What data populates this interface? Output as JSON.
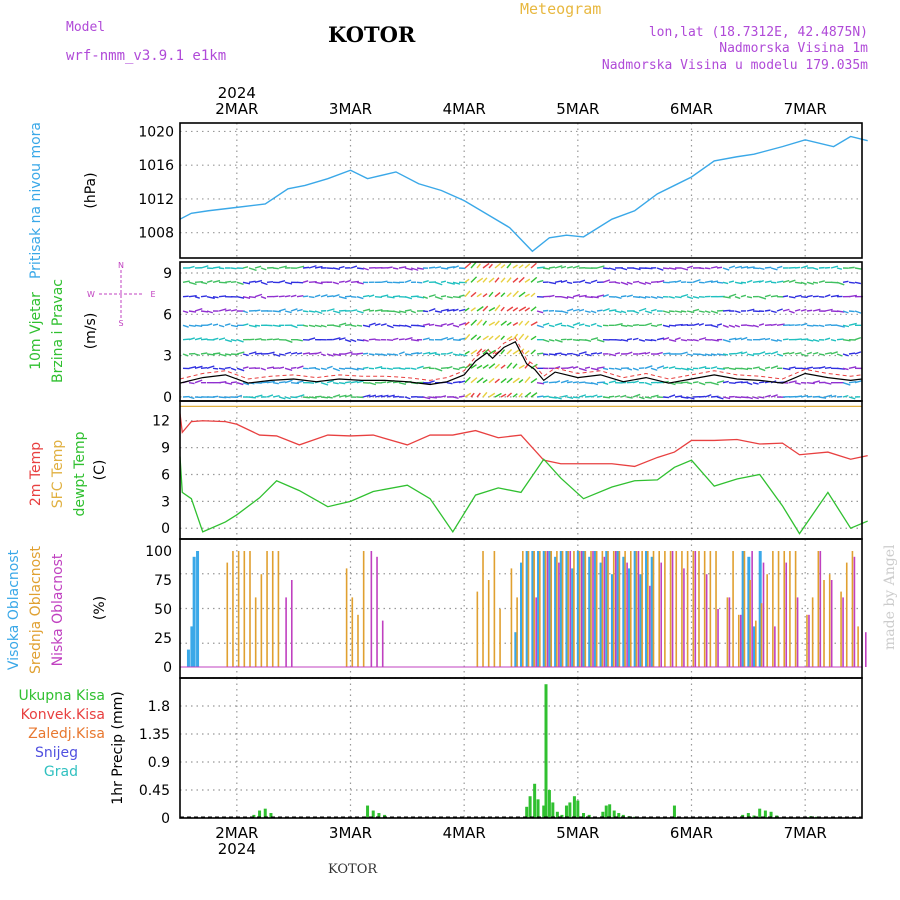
{
  "header": {
    "title": "KOTOR",
    "model_label": "Model",
    "model_name": "wrf-nmm_v3.9.1  e1km",
    "meteogram": "Meteogram",
    "lonlat": "lon,lat (18.7312E, 42.4875N)",
    "altitude": "Nadmorska Visina 1m",
    "model_altitude": "Nadmorska Visina u modelu 179.035m"
  },
  "footer": {
    "location": "KOTOR"
  },
  "credit": "made by Angel",
  "colors": {
    "pressure": "#3aa8e8",
    "wind_green": "#30c030",
    "temp": "#e84040",
    "sfc_temp": "#e0b040",
    "dewpoint": "#30c030",
    "high_cloud": "#3aa8e8",
    "mid_cloud": "#e0a030",
    "low_cloud": "#c040c0",
    "total_precip": "#30c030",
    "conv_precip": "#e84040",
    "frozen_precip": "#e87830",
    "snow": "#5050e0",
    "hail": "#30c0c0",
    "wind_label": "#c040c0"
  },
  "chart_data": [
    {
      "type": "line",
      "name": "pressure",
      "ylabel": "Pritisak na nivou mora",
      "unit": "(hPa)",
      "ylim": [
        1005,
        1021
      ],
      "yticks": [
        1008,
        1012,
        1016,
        1020
      ],
      "x_days": [
        1.5,
        1.6,
        1.75,
        2.0,
        2.25,
        2.45,
        2.6,
        2.8,
        3.0,
        3.15,
        3.4,
        3.6,
        3.8,
        4.0,
        4.2,
        4.4,
        4.6,
        4.75,
        4.9,
        5.05,
        5.3,
        5.5,
        5.7,
        5.85,
        6.0,
        6.2,
        6.4,
        6.55,
        6.8,
        7.0,
        7.25,
        7.4,
        7.55
      ],
      "values": [
        1009.6,
        1010.3,
        1010.6,
        1011.0,
        1011.4,
        1013.2,
        1013.6,
        1014.4,
        1015.4,
        1014.4,
        1015.2,
        1013.8,
        1013.0,
        1011.8,
        1010.2,
        1008.6,
        1005.8,
        1007.4,
        1007.7,
        1007.5,
        1009.6,
        1010.6,
        1012.6,
        1013.6,
        1014.6,
        1016.5,
        1017.0,
        1017.3,
        1018.2,
        1019.0,
        1018.2,
        1019.4,
        1018.9
      ]
    },
    {
      "type": "line",
      "name": "wind",
      "ylabel_lines": [
        "10m Vjetar",
        "Brzina i Pravac"
      ],
      "unit": "(m/s)",
      "ylim": [
        -0.3,
        9.8
      ],
      "yticks": [
        0,
        3,
        6,
        9
      ],
      "compass": [
        "N",
        "W",
        "E",
        "S"
      ],
      "x_days": [
        1.5,
        1.7,
        1.9,
        2.1,
        2.3,
        2.5,
        2.7,
        2.9,
        3.1,
        3.3,
        3.5,
        3.7,
        3.85,
        4.0,
        4.1,
        4.2,
        4.25,
        4.35,
        4.45,
        4.55,
        4.62,
        4.7,
        4.8,
        5.0,
        5.2,
        5.4,
        5.6,
        5.8,
        6.0,
        6.2,
        6.4,
        6.6,
        6.8,
        7.0,
        7.2,
        7.4,
        7.5
      ],
      "values": [
        1.0,
        1.4,
        1.6,
        1.0,
        1.2,
        1.3,
        1.1,
        1.3,
        1.2,
        1.2,
        1.1,
        0.9,
        1.1,
        1.6,
        2.6,
        3.2,
        2.8,
        3.6,
        4.0,
        2.4,
        2.0,
        1.2,
        1.8,
        1.4,
        1.6,
        1.1,
        1.4,
        1.0,
        1.3,
        1.6,
        1.3,
        1.2,
        1.0,
        1.7,
        1.4,
        1.2,
        1.3
      ]
    },
    {
      "type": "line",
      "name": "temperature",
      "ylabel_parts": [
        "2m Temp",
        "SFC Temp",
        "dewpt Temp"
      ],
      "unit": "(C)",
      "ylim": [
        -1.2,
        14.2
      ],
      "yticks": [
        0,
        3,
        6,
        9,
        12
      ],
      "x_days": [
        1.5,
        1.52,
        1.6,
        1.7,
        1.9,
        2.0,
        2.2,
        2.35,
        2.55,
        2.8,
        3.0,
        3.2,
        3.5,
        3.7,
        3.9,
        4.1,
        4.3,
        4.5,
        4.7,
        4.85,
        5.05,
        5.3,
        5.5,
        5.7,
        5.85,
        6.0,
        6.2,
        6.4,
        6.6,
        6.8,
        6.95,
        7.2,
        7.4,
        7.55
      ],
      "series": [
        {
          "name": "2m Temp",
          "values": [
            12.8,
            10.7,
            11.9,
            12.0,
            11.9,
            11.6,
            10.4,
            10.3,
            9.3,
            10.4,
            10.3,
            10.4,
            9.3,
            10.4,
            10.4,
            10.9,
            10.1,
            10.4,
            7.6,
            7.2,
            7.2,
            7.2,
            6.9,
            7.9,
            8.5,
            9.8,
            9.8,
            9.9,
            9.4,
            9.5,
            8.2,
            8.5,
            7.7,
            8.1
          ]
        },
        {
          "name": "dewpt Temp",
          "values": [
            8.0,
            4.0,
            3.3,
            -0.4,
            0.7,
            1.5,
            3.4,
            5.3,
            4.2,
            2.4,
            3.0,
            4.1,
            4.8,
            3.3,
            -0.4,
            3.7,
            4.5,
            4.0,
            7.7,
            5.6,
            3.3,
            4.6,
            5.3,
            5.4,
            6.8,
            7.6,
            4.7,
            5.5,
            6.0,
            2.5,
            -0.6,
            4.0,
            0.0,
            0.8
          ]
        },
        {
          "name": "SFC Temp",
          "values": [
            13.6,
            13.6
          ]
        }
      ]
    },
    {
      "type": "bar",
      "name": "cloud_cover",
      "ylabel_parts": [
        "Visoka Oblacnost",
        "Srednja Oblacnost",
        "Niska Oblacnost"
      ],
      "unit": "(%)",
      "ylim": [
        0,
        100
      ],
      "yticks": [
        0,
        25,
        50,
        75,
        100
      ],
      "series": [
        {
          "name": "Visoka Oblacnost",
          "x_days": [
            1.57,
            1.6,
            1.62,
            1.65,
            4.45,
            4.5,
            4.55,
            4.6,
            4.65,
            4.7,
            4.75,
            4.8,
            4.85,
            4.9,
            4.95,
            5.0,
            5.05,
            5.1,
            5.15,
            5.2,
            5.25,
            5.3,
            5.35,
            5.4,
            5.45,
            5.5,
            5.55,
            5.6,
            5.65,
            6.45,
            6.5,
            6.55,
            6.6
          ],
          "values": [
            15,
            35,
            95,
            100,
            30,
            90,
            100,
            100,
            100,
            100,
            100,
            95,
            100,
            100,
            85,
            100,
            100,
            95,
            100,
            90,
            100,
            80,
            100,
            95,
            85,
            100,
            80,
            100,
            95,
            100,
            95,
            35,
            100
          ]
        },
        {
          "name": "Srednja Oblacnost",
          "x_days": [
            1.9,
            1.95,
            2.0,
            2.05,
            2.1,
            2.15,
            2.2,
            2.25,
            2.3,
            2.35,
            2.95,
            3.0,
            3.05,
            3.1,
            4.1,
            4.15,
            4.2,
            4.25,
            4.3,
            4.4,
            4.45,
            4.5,
            4.55,
            4.6,
            4.65,
            4.7,
            4.75,
            4.8,
            4.85,
            4.9,
            4.95,
            5.0,
            5.05,
            5.1,
            5.15,
            5.2,
            5.25,
            5.3,
            5.35,
            5.4,
            5.45,
            5.5,
            5.55,
            5.6,
            5.65,
            5.7,
            5.75,
            5.8,
            5.85,
            5.9,
            5.95,
            6.0,
            6.05,
            6.1,
            6.15,
            6.2,
            6.3,
            6.35,
            6.4,
            6.45,
            6.5,
            6.55,
            6.6,
            6.65,
            6.7,
            6.75,
            6.8,
            6.85,
            6.9,
            7.0,
            7.05,
            7.1,
            7.15,
            7.2,
            7.3,
            7.35,
            7.4,
            7.45
          ],
          "values": [
            90,
            100,
            100,
            100,
            100,
            60,
            80,
            100,
            100,
            100,
            85,
            60,
            45,
            100,
            65,
            100,
            75,
            100,
            50,
            85,
            60,
            100,
            100,
            100,
            100,
            100,
            100,
            100,
            100,
            100,
            100,
            100,
            100,
            100,
            100,
            100,
            100,
            100,
            100,
            100,
            100,
            100,
            100,
            100,
            100,
            100,
            100,
            100,
            100,
            100,
            100,
            100,
            100,
            100,
            100,
            100,
            60,
            100,
            45,
            100,
            75,
            40,
            55,
            80,
            100,
            100,
            100,
            100,
            100,
            45,
            60,
            100,
            75,
            80,
            65,
            90,
            100,
            35
          ]
        },
        {
          "name": "Niska Oblacnost",
          "x_days": [
            2.4,
            2.45,
            3.15,
            3.2,
            3.25,
            4.6,
            4.7,
            4.8,
            4.9,
            5.0,
            5.1,
            5.2,
            5.3,
            5.4,
            5.5,
            5.6,
            5.7,
            5.8,
            5.9,
            6.0,
            6.1,
            6.2,
            6.3,
            6.4,
            6.5,
            6.6,
            6.7,
            6.8,
            6.9,
            7.0,
            7.1,
            7.2,
            7.3,
            7.4,
            7.5
          ],
          "values": [
            60,
            75,
            100,
            95,
            40,
            60,
            100,
            90,
            100,
            100,
            100,
            95,
            100,
            90,
            100,
            70,
            90,
            100,
            85,
            100,
            80,
            50,
            60,
            45,
            100,
            90,
            35,
            90,
            60,
            45,
            100,
            75,
            60,
            95,
            30
          ]
        }
      ]
    },
    {
      "type": "bar",
      "name": "precipitation",
      "ylabel_lines": [
        "Ukupna  Kisa",
        "Konvek.Kisa",
        "Zaledj.Kisa",
        "Snijeg",
        "Grad"
      ],
      "axis_label": "1hr Precip",
      "unit": "(mm)",
      "ylim": [
        0,
        2.25
      ],
      "yticks": [
        0,
        0.45,
        0.9,
        1.35,
        1.8
      ],
      "ytick_labels": [
        "0",
        "0.45",
        "0.9",
        "1.35",
        "1.8"
      ],
      "series": [
        {
          "name": "Ukupna  Kisa",
          "x_days": [
            2.15,
            2.2,
            2.25,
            2.3,
            3.15,
            3.2,
            3.25,
            3.3,
            4.55,
            4.58,
            4.62,
            4.65,
            4.7,
            4.72,
            4.75,
            4.78,
            4.82,
            4.86,
            4.9,
            4.93,
            4.97,
            5.0,
            5.05,
            5.1,
            5.22,
            5.25,
            5.28,
            5.32,
            5.36,
            5.4,
            5.45,
            5.5,
            5.85,
            6.45,
            6.5,
            6.55,
            6.6,
            6.65,
            6.7,
            6.75,
            7.0,
            7.05,
            7.1
          ],
          "values": [
            0.05,
            0.12,
            0.15,
            0.08,
            0.2,
            0.12,
            0.08,
            0.05,
            0.18,
            0.35,
            0.55,
            0.3,
            0.2,
            2.15,
            0.45,
            0.25,
            0.1,
            0.05,
            0.2,
            0.25,
            0.35,
            0.28,
            0.08,
            0.05,
            0.1,
            0.2,
            0.22,
            0.12,
            0.08,
            0.05,
            0.03,
            0.02,
            0.2,
            0.05,
            0.08,
            0.04,
            0.15,
            0.12,
            0.1,
            0.04,
            0.02,
            0.03,
            0.02
          ]
        }
      ]
    }
  ],
  "x_axis": {
    "top_year": "2024",
    "bottom_year": "2024",
    "ticks": [
      {
        "label": "2MAR",
        "day": 2
      },
      {
        "label": "3MAR",
        "day": 3
      },
      {
        "label": "4MAR",
        "day": 4
      },
      {
        "label": "5MAR",
        "day": 5
      },
      {
        "label": "6MAR",
        "day": 6
      },
      {
        "label": "7MAR",
        "day": 7
      }
    ],
    "range_days": [
      1.5,
      7.5
    ]
  }
}
